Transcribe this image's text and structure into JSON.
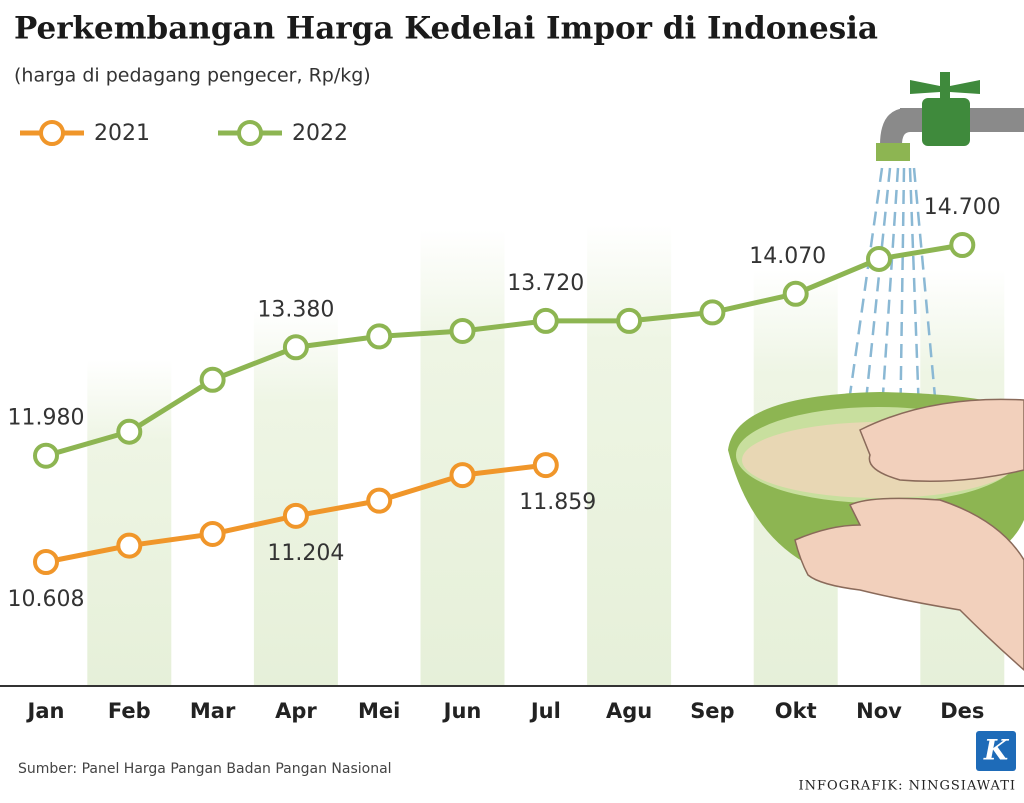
{
  "chart_data": {
    "type": "line",
    "title": "Perkembangan Harga Kedelai Impor di Indonesia",
    "subtitle": "(harga di pedagang pengecer, Rp/kg)",
    "source": "Sumber: Panel Harga Pangan Badan Pangan Nasional",
    "credit": "INFOGRAFIK: NINGSIAWATI",
    "logo": "K",
    "categories": [
      "Jan",
      "Feb",
      "Mar",
      "Apr",
      "Mei",
      "Jun",
      "Jul",
      "Agu",
      "Sep",
      "Okt",
      "Nov",
      "Des"
    ],
    "series": [
      {
        "name": "2021",
        "color": "#f0962a",
        "values": [
          10608,
          10820,
          10970,
          11204,
          11400,
          11730,
          11859,
          null,
          null,
          null,
          null,
          null
        ],
        "value_labels": [
          "10.608",
          null,
          null,
          "11.204",
          null,
          null,
          "11.859",
          null,
          null,
          null,
          null,
          null
        ]
      },
      {
        "name": "2022",
        "color": "#8db552",
        "values": [
          11980,
          12290,
          12960,
          13380,
          13520,
          13590,
          13720,
          13720,
          13830,
          14070,
          14520,
          14700
        ],
        "value_labels": [
          "11.980",
          null,
          null,
          "13.380",
          null,
          null,
          "13.720",
          null,
          null,
          "14.070",
          null,
          "14.700"
        ]
      }
    ]
  }
}
